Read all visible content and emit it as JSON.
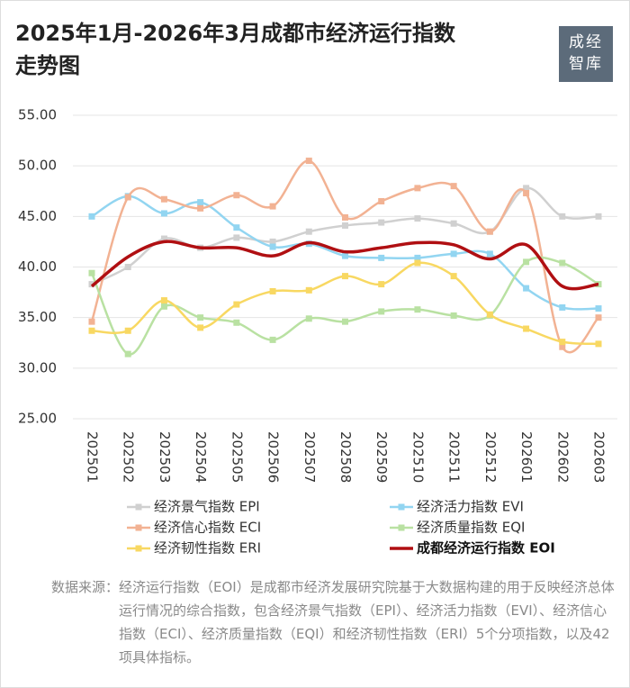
{
  "chart_data": {
    "type": "line",
    "title": [
      "2025年1月-2026年3月成都市经济运行指数",
      "走势图"
    ],
    "logo": [
      "成经",
      "智库"
    ],
    "categories": [
      "202501",
      "202502",
      "202503",
      "202504",
      "202505",
      "202506",
      "202507",
      "202508",
      "202509",
      "202510",
      "202511",
      "202512",
      "202601",
      "202602",
      "202603"
    ],
    "ylim": [
      25,
      55
    ],
    "yticks": [
      {
        "value": 25,
        "label": "25.00"
      },
      {
        "value": 30,
        "label": "30.00"
      },
      {
        "value": 35,
        "label": "35.00"
      },
      {
        "value": 40,
        "label": "40.00"
      },
      {
        "value": 45,
        "label": "45.00"
      },
      {
        "value": 50,
        "label": "50.00"
      },
      {
        "value": 55,
        "label": "55.00"
      }
    ],
    "grid": true,
    "series": [
      {
        "name": "经济景气指数 EPI",
        "color": "#d0d0d0",
        "markers": true,
        "values": [
          38.3,
          40.0,
          42.8,
          41.9,
          42.9,
          42.5,
          43.5,
          44.1,
          44.4,
          44.8,
          44.3,
          43.5,
          47.8,
          45.0,
          45.0
        ]
      },
      {
        "name": "经济活力指数 EVI",
        "color": "#92d5f1",
        "markers": true,
        "values": [
          45.0,
          47.0,
          45.3,
          46.4,
          43.9,
          42.0,
          42.3,
          41.1,
          40.9,
          40.9,
          41.3,
          41.3,
          37.9,
          36.0,
          35.9
        ]
      },
      {
        "name": "经济信心指数 ECI",
        "color": "#f2b293",
        "markers": true,
        "values": [
          34.6,
          46.9,
          46.7,
          45.8,
          47.1,
          46.0,
          50.5,
          44.9,
          46.5,
          47.8,
          48.0,
          43.5,
          47.3,
          32.1,
          35.0
        ]
      },
      {
        "name": "经济质量指数 EQI",
        "color": "#b9e1a2",
        "markers": true,
        "values": [
          39.4,
          31.4,
          36.1,
          35.0,
          34.5,
          32.8,
          34.9,
          34.6,
          35.6,
          35.8,
          35.2,
          35.2,
          40.5,
          40.4,
          38.3
        ]
      },
      {
        "name": "经济韧性指数 ERI",
        "color": "#f8d862",
        "markers": true,
        "values": [
          33.7,
          33.7,
          36.7,
          34.0,
          36.3,
          37.6,
          37.7,
          39.1,
          38.3,
          40.4,
          39.1,
          35.3,
          33.9,
          32.6,
          32.4
        ]
      },
      {
        "name": "成都经济运行指数 EOI",
        "color": "#b00f12",
        "markers": false,
        "values": [
          38.1,
          41.0,
          42.5,
          41.9,
          41.9,
          41.1,
          42.4,
          41.5,
          41.9,
          42.4,
          42.2,
          40.8,
          42.2,
          38.1,
          38.3
        ]
      }
    ],
    "source_label": "数据来源：",
    "source": "经济运行指数（EOI）是成都市经济发展研究院基于大数据构建的用于反映经济总体运行情况的综合指数，包含经济景气指数（EPI）、经济活力指数（EVI）、经济信心指数（ECI）、经济质量指数（EQI）和经济韧性指数（ERI）5个分项指数，以及42项具体指标。"
  }
}
